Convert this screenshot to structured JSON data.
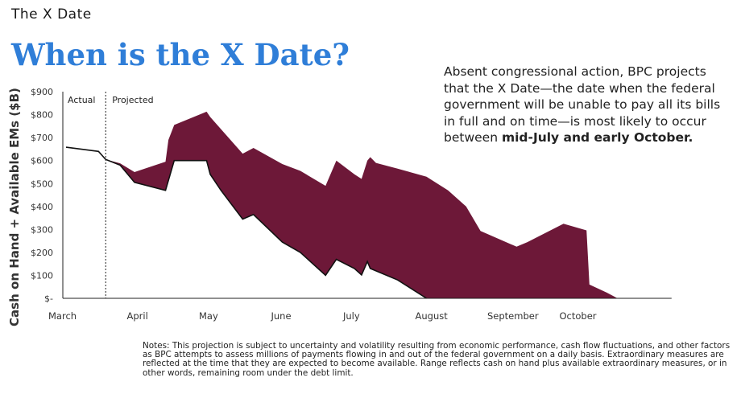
{
  "header": {
    "section_label": "The X Date",
    "title": "When is the X Date?"
  },
  "sidebar": {
    "text_part1": "Absent congressional action, BPC projects that the X Date—the date when the federal government will be unable to pay all its bills in full and on time—is most likely to occur between ",
    "text_bold": "mid-July and early October."
  },
  "notes": "Notes: This projection is subject to uncertainty and volatility resulting from economic performance, cash flow fluctuations, and other factors as BPC attempts to assess millions of payments flowing in and out of the federal government on a daily basis. Extraordinary measures are reflected at the time that they are expected to become available. Range reflects cash on hand plus available extraordinary measures, or in other words, remaining room under the debt limit.",
  "colors": {
    "title_blue": "#2f7ed8",
    "fill": "#6d1838",
    "line": "#111111"
  },
  "chart_data": {
    "type": "area",
    "ylabel": "Cash on Hand + Available EMs ($B)",
    "xlabel": "",
    "title": "When is the X Date?",
    "ylim": [
      0,
      900
    ],
    "yticks": [
      0,
      100,
      200,
      300,
      400,
      500,
      600,
      700,
      800,
      900
    ],
    "ytick_labels": [
      "$-",
      "$100",
      "$200",
      "$300",
      "$400",
      "$500",
      "$600",
      "$700",
      "$800",
      "$900"
    ],
    "xlim": [
      0,
      8.4
    ],
    "xtick_positions": [
      0,
      1,
      2,
      3,
      4,
      5,
      6,
      7
    ],
    "xtick_labels": [
      "March",
      "April",
      "May",
      "June",
      "July",
      "August",
      "September",
      "October"
    ],
    "grid": false,
    "divider": {
      "x": 0.55,
      "left_label": "Actual",
      "right_label": "Projected"
    },
    "actual": [
      [
        0,
        658
      ],
      [
        0.45,
        640
      ],
      [
        0.55,
        605
      ]
    ],
    "upper": [
      [
        0.55,
        605
      ],
      [
        0.75,
        588
      ],
      [
        0.95,
        550
      ],
      [
        1.38,
        595
      ],
      [
        1.42,
        690
      ],
      [
        1.5,
        755
      ],
      [
        1.95,
        813
      ],
      [
        2.0,
        790
      ],
      [
        2.45,
        630
      ],
      [
        2.6,
        655
      ],
      [
        3.0,
        585
      ],
      [
        3.25,
        555
      ],
      [
        3.6,
        490
      ],
      [
        3.75,
        600
      ],
      [
        4.0,
        540
      ],
      [
        4.1,
        520
      ],
      [
        4.18,
        600
      ],
      [
        4.22,
        615
      ],
      [
        4.3,
        590
      ],
      [
        4.6,
        565
      ],
      [
        5.0,
        530
      ],
      [
        5.3,
        470
      ],
      [
        5.55,
        400
      ],
      [
        5.75,
        293
      ],
      [
        6.25,
        225
      ],
      [
        6.4,
        245
      ],
      [
        6.9,
        325
      ],
      [
        7.22,
        296
      ],
      [
        7.26,
        60
      ],
      [
        7.5,
        25
      ],
      [
        7.65,
        0
      ]
    ],
    "lower": [
      [
        0.55,
        605
      ],
      [
        0.75,
        580
      ],
      [
        0.95,
        505
      ],
      [
        1.38,
        470
      ],
      [
        1.5,
        600
      ],
      [
        1.95,
        600
      ],
      [
        2.0,
        540
      ],
      [
        2.15,
        470
      ],
      [
        2.45,
        345
      ],
      [
        2.6,
        365
      ],
      [
        3.0,
        245
      ],
      [
        3.25,
        200
      ],
      [
        3.6,
        100
      ],
      [
        3.75,
        170
      ],
      [
        4.0,
        130
      ],
      [
        4.1,
        102
      ],
      [
        4.18,
        160
      ],
      [
        4.22,
        130
      ],
      [
        4.6,
        80
      ],
      [
        5.0,
        0
      ]
    ]
  }
}
